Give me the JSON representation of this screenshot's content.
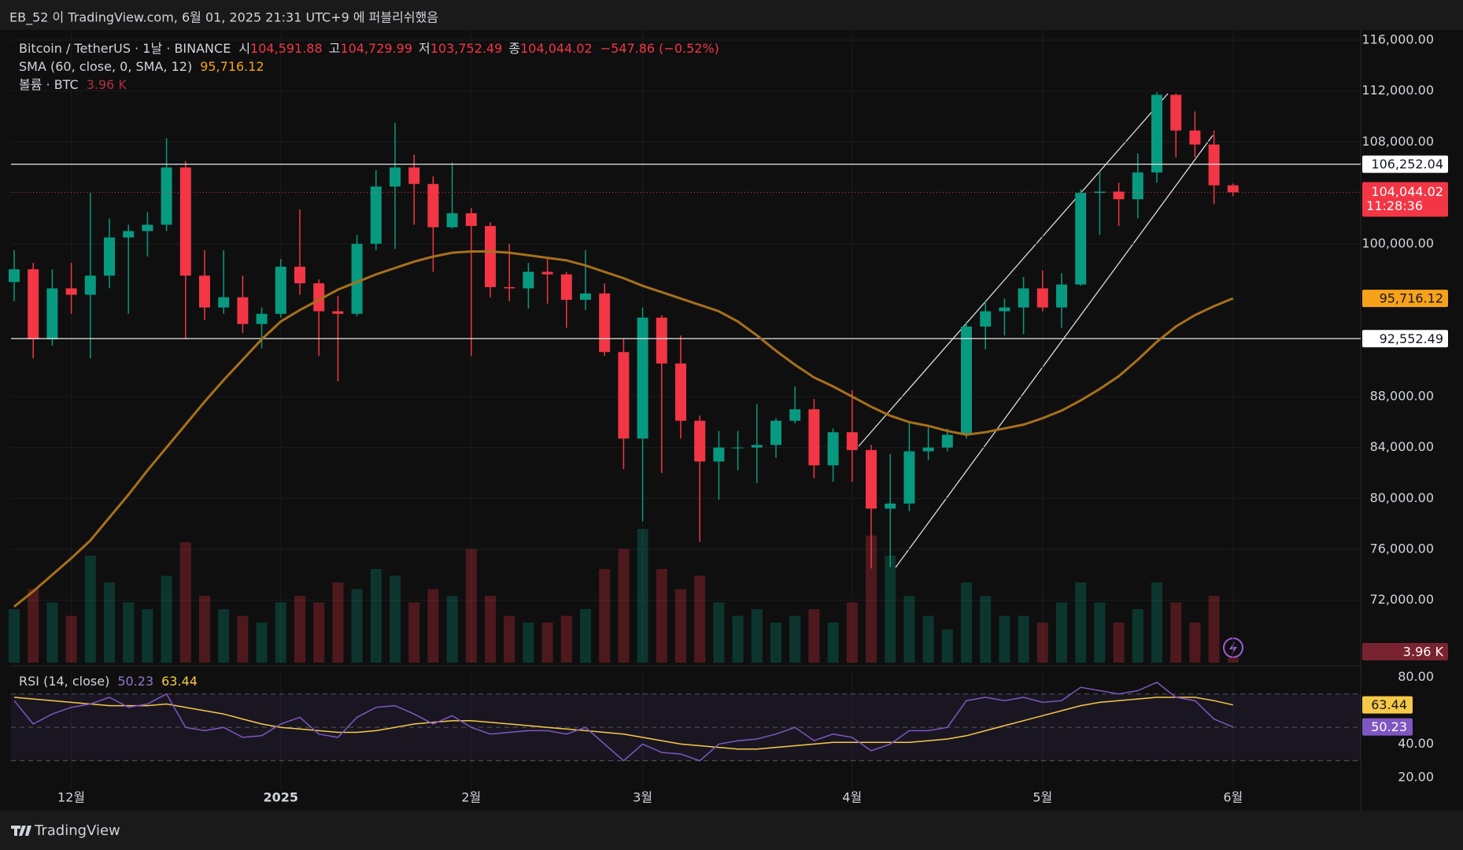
{
  "chart_data": {
    "type": "candlestick",
    "header": "EB_52 이 TradingView.com, 6월 01, 2025 21:31 UTC+9 에 퍼블리쉬했음",
    "symbol": "Bitcoin / TetherUS · 1날 · BINANCE",
    "ohlc_legend": [
      {
        "prefix": "시",
        "label": "104,591.88"
      },
      {
        "prefix": "고",
        "label": "104,729.99"
      },
      {
        "prefix": "저",
        "label": "103,752.49"
      },
      {
        "prefix": "종",
        "label": "104,044.02"
      }
    ],
    "change_label": "−547.86 (−0.52%)",
    "last_price_label": "104,044.02",
    "countdown": "11:28:36",
    "colors": {
      "up": "#089981",
      "down": "#f23645"
    },
    "categories": [
      null,
      null,
      null,
      "12월",
      null,
      null,
      null,
      null,
      null,
      null,
      null,
      null,
      null,
      null,
      "2025",
      null,
      null,
      null,
      null,
      null,
      null,
      null,
      null,
      null,
      "2월",
      null,
      null,
      null,
      null,
      null,
      null,
      null,
      null,
      "3월",
      null,
      null,
      null,
      null,
      null,
      null,
      null,
      null,
      null,
      null,
      "4월",
      null,
      null,
      null,
      null,
      null,
      null,
      null,
      null,
      null,
      "5월",
      null,
      null,
      null,
      null,
      null,
      null,
      null,
      null,
      null,
      "6월"
    ],
    "open": [
      97000,
      98000,
      92500,
      96500,
      96000,
      97500,
      100500,
      101000,
      101500,
      106000,
      97500,
      95000,
      95800,
      93700,
      94500,
      98200,
      96900,
      94700,
      94500,
      100000,
      104500,
      106000,
      104700,
      101300,
      102400,
      101400,
      96600,
      96500,
      97800,
      97600,
      95600,
      96100,
      91500,
      84700,
      94200,
      90600,
      86100,
      82900,
      84000,
      84000,
      84200,
      86100,
      87000,
      82600,
      85200,
      83800,
      79200,
      79600,
      83700,
      84000,
      85000,
      93500,
      94700,
      95000,
      96500,
      95000,
      96800,
      104000,
      104100,
      103500,
      105600,
      111700,
      108900,
      107800,
      104591.88
    ],
    "high": [
      99500,
      98500,
      98000,
      98500,
      104000,
      102000,
      101500,
      102500,
      108300,
      106500,
      99500,
      99500,
      97500,
      95000,
      98800,
      102700,
      97200,
      95900,
      100700,
      105800,
      109500,
      107000,
      105300,
      106400,
      102800,
      101700,
      100000,
      98500,
      98800,
      97800,
      99500,
      96900,
      92500,
      95000,
      94400,
      92800,
      86500,
      85300,
      85300,
      87400,
      86300,
      88800,
      87800,
      85500,
      88500,
      84200,
      83500,
      86000,
      85800,
      85500,
      93900,
      95500,
      95700,
      97400,
      97900,
      97700,
      104300,
      105700,
      104800,
      107100,
      111900,
      111800,
      110400,
      108900,
      104729.99
    ],
    "low": [
      95500,
      91000,
      92000,
      94500,
      91000,
      96500,
      94500,
      99000,
      101000,
      92500,
      94000,
      94500,
      93000,
      91800,
      94200,
      96000,
      91200,
      89200,
      94300,
      99500,
      99600,
      101500,
      97800,
      101200,
      91200,
      95800,
      95500,
      94900,
      95300,
      93400,
      94800,
      91200,
      82300,
      78200,
      82000,
      84700,
      76600,
      79900,
      82200,
      81200,
      83200,
      85900,
      81600,
      81300,
      81300,
      74500,
      74600,
      79000,
      83000,
      83700,
      84700,
      91700,
      92800,
      92900,
      94700,
      93400,
      96700,
      100700,
      101400,
      102000,
      104800,
      106800,
      106800,
      103100,
      103752.49
    ],
    "close": [
      98000,
      92500,
      96500,
      96000,
      97500,
      100500,
      101000,
      101500,
      106000,
      97500,
      95000,
      95800,
      93700,
      94500,
      98200,
      96900,
      94700,
      94500,
      100000,
      104500,
      106000,
      104700,
      101300,
      102400,
      101400,
      96600,
      96500,
      97800,
      97600,
      95600,
      96100,
      91500,
      84700,
      94200,
      90600,
      86100,
      82900,
      84000,
      84000,
      84200,
      86100,
      87000,
      82600,
      85200,
      83800,
      79200,
      79600,
      83700,
      84000,
      85000,
      93500,
      94700,
      95000,
      96500,
      95000,
      96800,
      104000,
      104100,
      103500,
      105600,
      111700,
      108900,
      107800,
      104591.88,
      104044.02
    ],
    "ylim": [
      67100,
      116800
    ],
    "yticks": [
      {
        "value": 72000,
        "label": "72,000.00"
      },
      {
        "value": 76000,
        "label": "76,000.00"
      },
      {
        "value": 80000,
        "label": "80,000.00"
      },
      {
        "value": 84000,
        "label": "84,000.00"
      },
      {
        "value": 88000,
        "label": "88,000.00"
      },
      {
        "value": 100000,
        "label": "100,000.00"
      },
      {
        "value": 108000,
        "label": "108,000.00"
      },
      {
        "value": 112000,
        "label": "112,000.00"
      },
      {
        "value": 116000,
        "label": "116,000.00"
      }
    ],
    "grid": true,
    "hlines": [
      {
        "value": 106252.04,
        "label": "106,252.04"
      },
      {
        "value": 92552.49,
        "label": "92,552.49"
      }
    ],
    "sma": {
      "name": "SMA (60, close, 0, SMA, 12)",
      "color": "#a8701c",
      "last_label": "95,716.12",
      "values": [
        71500,
        72700,
        74000,
        75300,
        76700,
        78500,
        80300,
        82200,
        84000,
        85800,
        87600,
        89300,
        90900,
        92500,
        93900,
        94800,
        95600,
        96400,
        97000,
        97600,
        98100,
        98600,
        99000,
        99300,
        99400,
        99400,
        99300,
        99100,
        98900,
        98700,
        98300,
        97800,
        97300,
        96700,
        96200,
        95700,
        95200,
        94700,
        93900,
        92800,
        91600,
        90500,
        89500,
        88800,
        88000,
        87200,
        86500,
        86000,
        85700,
        85300,
        85000,
        85200,
        85500,
        85800,
        86300,
        86900,
        87700,
        88600,
        89600,
        90900,
        92300,
        93500,
        94400,
        95100,
        95716.12
      ]
    },
    "volume": {
      "name": "볼륨 · BTC",
      "last_label": "3.96 K",
      "values": [
        40,
        55,
        45,
        35,
        80,
        60,
        45,
        40,
        65,
        90,
        50,
        40,
        35,
        30,
        45,
        50,
        45,
        60,
        55,
        70,
        65,
        45,
        55,
        50,
        85,
        50,
        35,
        30,
        30,
        35,
        40,
        70,
        85,
        100,
        70,
        55,
        65,
        45,
        35,
        40,
        30,
        35,
        40,
        30,
        45,
        95,
        80,
        50,
        35,
        25,
        60,
        50,
        35,
        35,
        30,
        45,
        60,
        45,
        30,
        40,
        60,
        45,
        30,
        50,
        3.96
      ]
    },
    "rsi": {
      "name": "RSI (14, close)",
      "color": "#7e57c2",
      "ma_color": "#f7c948",
      "values": [
        66,
        52,
        58,
        62,
        64,
        68,
        62,
        64,
        70,
        50,
        48,
        50,
        44,
        45,
        52,
        56,
        46,
        44,
        56,
        62,
        63,
        58,
        52,
        57,
        50,
        46,
        47,
        48,
        48,
        46,
        50,
        40,
        30,
        40,
        35,
        34,
        30,
        40,
        42,
        43,
        46,
        50,
        42,
        46,
        44,
        36,
        40,
        48,
        48,
        50,
        66,
        68,
        66,
        68,
        65,
        66,
        74,
        72,
        70,
        72,
        77,
        68,
        66,
        55,
        50.23
      ],
      "ma_values": [
        68,
        67,
        66,
        65,
        64,
        63,
        63,
        63,
        64,
        62,
        60,
        58,
        55,
        52,
        50,
        49,
        48,
        47,
        47,
        48,
        50,
        52,
        53,
        54,
        54,
        53,
        52,
        51,
        50,
        49,
        48,
        47,
        46,
        44,
        42,
        40,
        39,
        38,
        37,
        37,
        38,
        39,
        40,
        41,
        41,
        41,
        41,
        41,
        42,
        43,
        45,
        48,
        51,
        54,
        57,
        60,
        63,
        65,
        66,
        67,
        68,
        68,
        68,
        66,
        63.44
      ],
      "ylim": [
        13.3,
        84.5
      ],
      "yticks": [
        {
          "value": 20,
          "label": "20.00"
        },
        {
          "value": 40,
          "label": "40.00"
        },
        {
          "value": 80,
          "label": "80.00"
        }
      ],
      "bands": [
        30,
        50,
        70
      ]
    },
    "footer": "TradingView"
  }
}
